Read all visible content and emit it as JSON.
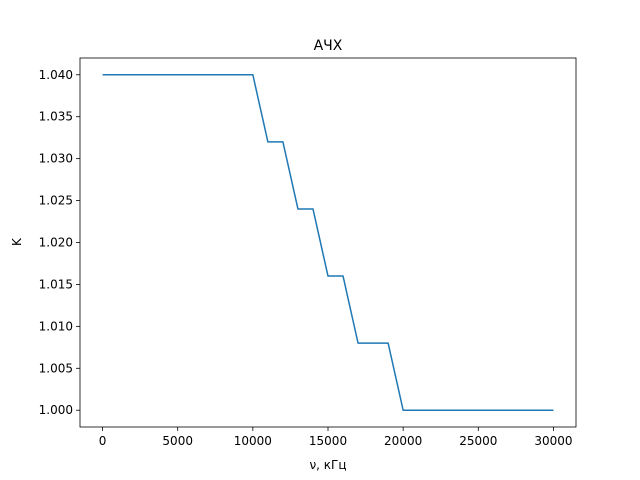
{
  "chart_data": {
    "type": "line",
    "title": "АЧХ",
    "xlabel": "ν, кГц",
    "ylabel": "K",
    "xlim": [
      -1500,
      31500
    ],
    "ylim": [
      0.998,
      1.042
    ],
    "xticks": [
      0,
      5000,
      10000,
      15000,
      20000,
      25000,
      30000
    ],
    "xtick_labels": [
      "0",
      "5000",
      "10000",
      "15000",
      "20000",
      "25000",
      "30000"
    ],
    "yticks": [
      1.0,
      1.005,
      1.01,
      1.015,
      1.02,
      1.025,
      1.03,
      1.035,
      1.04
    ],
    "ytick_labels": [
      "1.000",
      "1.005",
      "1.010",
      "1.015",
      "1.020",
      "1.025",
      "1.030",
      "1.035",
      "1.040"
    ],
    "grid": false,
    "series": [
      {
        "color": "#1f77b4",
        "x": [
          0,
          10000,
          11000,
          12000,
          13000,
          14000,
          15000,
          16000,
          17000,
          19000,
          20000,
          30000
        ],
        "y": [
          1.04,
          1.04,
          1.032,
          1.032,
          1.024,
          1.024,
          1.016,
          1.016,
          1.008,
          1.008,
          1.0,
          1.0
        ]
      }
    ]
  }
}
